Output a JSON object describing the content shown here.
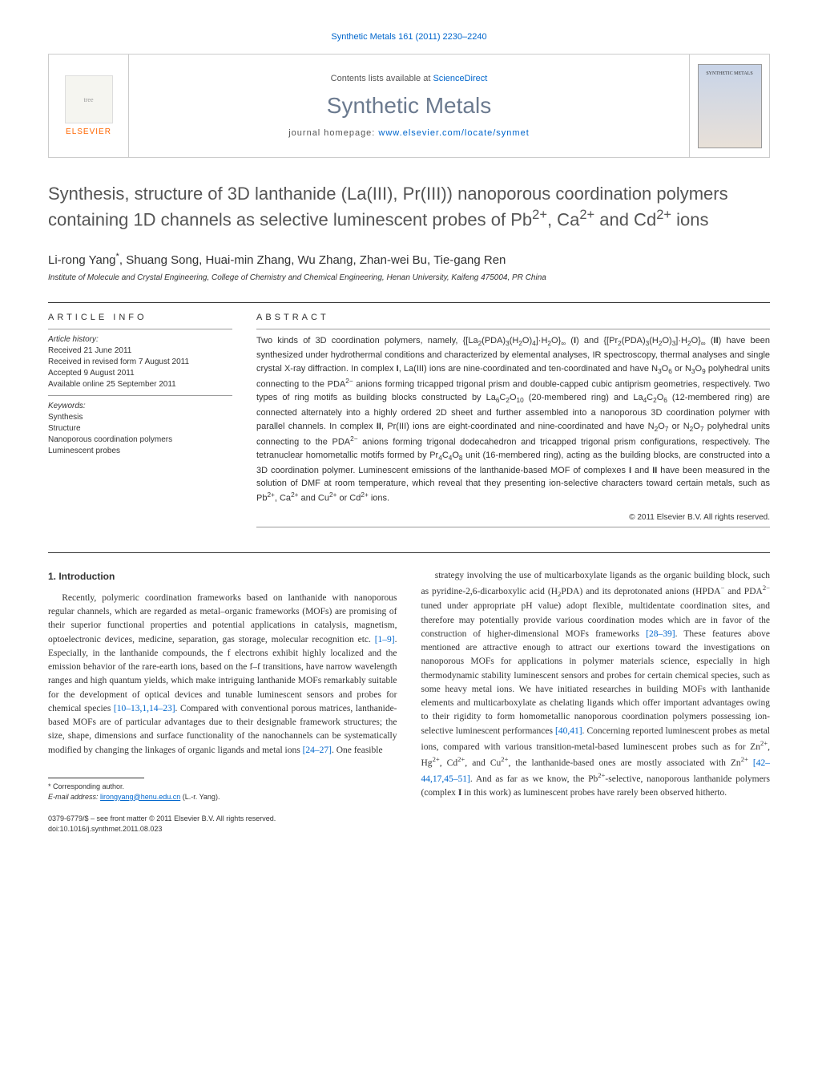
{
  "header": {
    "citation": "Synthetic Metals 161 (2011) 2230–2240",
    "contents_prefix": "Contents lists available at ",
    "contents_link": "ScienceDirect",
    "journal_name": "Synthetic Metals",
    "homepage_prefix": "journal homepage: ",
    "homepage_url": "www.elsevier.com/locate/synmet",
    "publisher_label": "ELSEVIER",
    "cover_label": "SYNTHETIC METALS"
  },
  "article": {
    "title_html": "Synthesis, structure of 3D lanthanide (La(III), Pr(III)) nanoporous coordination polymers containing 1D channels as selective luminescent probes of Pb<sup>2+</sup>, Ca<sup>2+</sup> and Cd<sup>2+</sup> ions",
    "authors_html": "Li-rong Yang<sup>*</sup>, Shuang Song, Huai-min Zhang, Wu Zhang, Zhan-wei Bu, Tie-gang Ren",
    "affiliation": "Institute of Molecule and Crystal Engineering, College of Chemistry and Chemical Engineering, Henan University, Kaifeng 475004, PR China"
  },
  "info": {
    "heading": "ARTICLE INFO",
    "history_label": "Article history:",
    "received": "Received 21 June 2011",
    "revised": "Received in revised form 7 August 2011",
    "accepted": "Accepted 9 August 2011",
    "online": "Available online 25 September 2011",
    "keywords_label": "Keywords:",
    "keywords": [
      "Synthesis",
      "Structure",
      "Nanoporous coordination polymers",
      "Luminescent probes"
    ]
  },
  "abstract": {
    "heading": "ABSTRACT",
    "text_html": "Two kinds of 3D coordination polymers, namely, {[La<sub>2</sub>(PDA)<sub>3</sub>(H<sub>2</sub>O)<sub>4</sub>]·H<sub>2</sub>O}<sub>∞</sub> (<b>I</b>) and {[Pr<sub>2</sub>(PDA)<sub>3</sub>(H<sub>2</sub>O)<sub>3</sub>]·H<sub>2</sub>O}<sub>∞</sub> (<b>II</b>) have been synthesized under hydrothermal conditions and characterized by elemental analyses, IR spectroscopy, thermal analyses and single crystal X-ray diffraction. In complex <b>I</b>, La(III) ions are nine-coordinated and ten-coordinated and have N<sub>3</sub>O<sub>6</sub> or N<sub>3</sub>O<sub>9</sub> polyhedral units connecting to the PDA<sup>2−</sup> anions forming tricapped trigonal prism and double-capped cubic antiprism geometries, respectively. Two types of ring motifs as building blocks constructed by La<sub>6</sub>C<sub>2</sub>O<sub>10</sub> (20-membered ring) and La<sub>4</sub>C<sub>2</sub>O<sub>6</sub> (12-membered ring) are connected alternately into a highly ordered 2D sheet and further assembled into a nanoporous 3D coordination polymer with parallel channels. In complex <b>II</b>, Pr(III) ions are eight-coordinated and nine-coordinated and have N<sub>2</sub>O<sub>7</sub> or N<sub>2</sub>O<sub>7</sub> polyhedral units connecting to the PDA<sup>2−</sup> anions forming trigonal dodecahedron and tricapped trigonal prism configurations, respectively. The tetranuclear homometallic motifs formed by Pr<sub>4</sub>C<sub>4</sub>O<sub>8</sub> unit (16-membered ring), acting as the building blocks, are constructed into a 3D coordination polymer. Luminescent emissions of the lanthanide-based MOF of complexes <b>I</b> and <b>II</b> have been measured in the solution of DMF at room temperature, which reveal that they presenting ion-selective characters toward certain metals, such as Pb<sup>2+</sup>, Ca<sup>2+</sup> and Cu<sup>2+</sup> or Cd<sup>2+</sup> ions.",
    "copyright": "© 2011 Elsevier B.V. All rights reserved."
  },
  "body": {
    "section_heading": "1. Introduction",
    "col1_html": "Recently, polymeric coordination frameworks based on lanthanide with nanoporous regular channels, which are regarded as metal–organic frameworks (MOFs) are promising of their superior functional properties and potential applications in catalysis, magnetism, optoelectronic devices, medicine, separation, gas storage, molecular recognition etc. <span class=\"ref-link\">[1–9]</span>. Especially, in the lanthanide compounds, the f electrons exhibit highly localized and the emission behavior of the rare-earth ions, based on the f–f transitions, have narrow wavelength ranges and high quantum yields, which make intriguing lanthanide MOFs remarkably suitable for the development of optical devices and tunable luminescent sensors and probes for chemical species <span class=\"ref-link\">[10–13,1,14–23]</span>. Compared with conventional porous matrices, lanthanide-based MOFs are of particular advantages due to their designable framework structures; the size, shape, dimensions and surface functionality of the nanochannels can be systematically modified by changing the linkages of organic ligands and metal ions <span class=\"ref-link\">[24–27]</span>. One feasible",
    "col2_html": "strategy involving the use of multicarboxylate ligands as the organic building block, such as pyridine-2,6-dicarboxylic acid (H<sub>2</sub>PDA) and its deprotonated anions (HPDA<sup>−</sup> and PDA<sup>2−</sup> tuned under appropriate pH value) adopt flexible, multidentate coordination sites, and therefore may potentially provide various coordination modes which are in favor of the construction of higher-dimensional MOFs frameworks <span class=\"ref-link\">[28–39]</span>. These features above mentioned are attractive enough to attract our exertions toward the investigations on nanoporous MOFs for applications in polymer materials science, especially in high thermodynamic stability luminescent sensors and probes for certain chemical species, such as some heavy metal ions. We have initiated researches in building MOFs with lanthanide elements and multicarboxylate as chelating ligands which offer important advantages owing to their rigidity to form homometallic nanoporous coordination polymers possessing ion-selective luminescent performances <span class=\"ref-link\">[40,41]</span>. Concerning reported luminescent probes as metal ions, compared with various transition-metal-based luminescent probes such as for Zn<sup>2+</sup>, Hg<sup>2+</sup>, Cd<sup>2+</sup>, and Cu<sup>2+</sup>, the lanthanide-based ones are mostly associated with Zn<sup>2+</sup> <span class=\"ref-link\">[42–44,17,45–51]</span>. And as far as we know, the Pb<sup>2+</sup>-selective, nanoporous lanthanide polymers (complex <b>I</b> in this work) as luminescent probes have rarely been observed hitherto."
  },
  "footer": {
    "corresponding_label": "* Corresponding author.",
    "email_label": "E-mail address: ",
    "email": "lirongyang@henu.edu.cn",
    "email_suffix": " (L.-r. Yang).",
    "issn_line": "0379-6779/$ – see front matter © 2011 Elsevier B.V. All rights reserved.",
    "doi_line": "doi:10.1016/j.synthmet.2011.08.023"
  },
  "colors": {
    "link": "#0066cc",
    "journal_title": "#6b7a8f",
    "publisher": "#ff6600",
    "text": "#333333",
    "border": "#cccccc"
  }
}
